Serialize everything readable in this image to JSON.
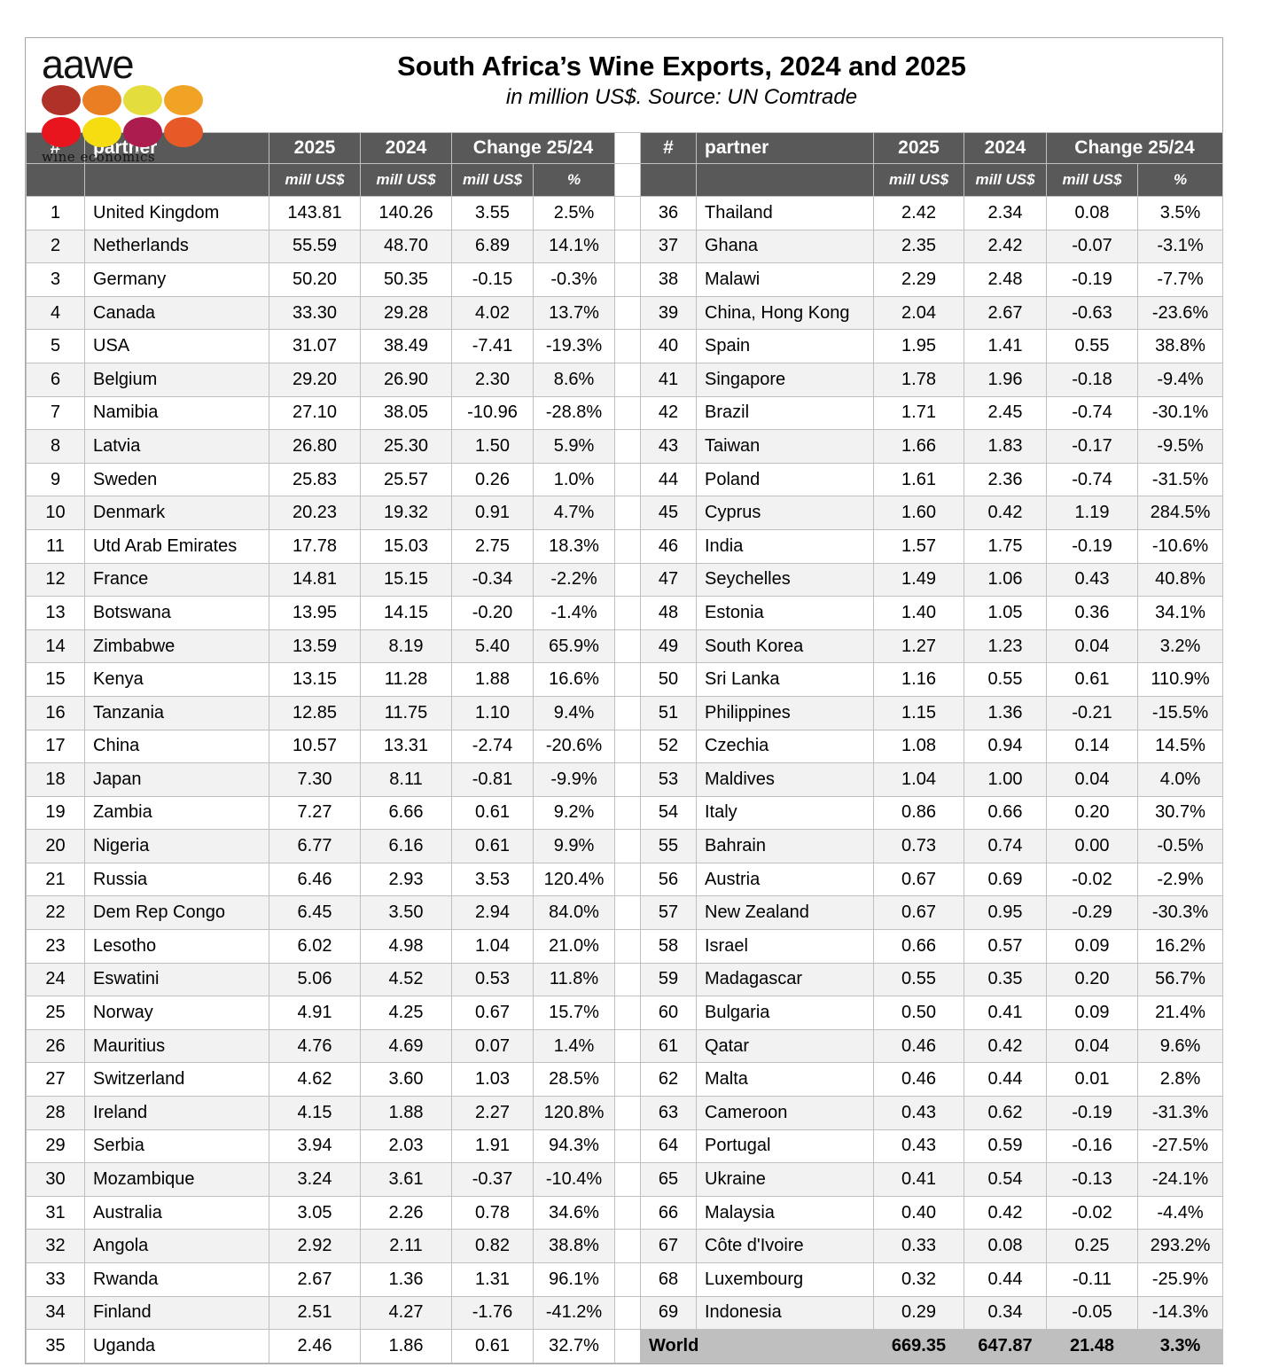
{
  "logo": {
    "brand": "aawe",
    "tagline": "wine economics",
    "dot_colors": [
      [
        "#af3128",
        "#e97e23",
        "#e3dd3e",
        "#f0a325"
      ],
      [
        "#e8141e",
        "#f6dd12",
        "#ac1c4e",
        "#e75a28"
      ]
    ]
  },
  "chart_data": {
    "type": "table",
    "title": "South Africa’s Wine Exports, 2024 and 2025",
    "subtitle": "in million US$. Source: UN Comtrade",
    "columns": {
      "rank": "#",
      "partner": "partner",
      "y2025": "2025",
      "y2024": "2024",
      "change": "Change 25/24",
      "unit": "mill US$",
      "pct": "%"
    },
    "left_rows": [
      [
        1,
        "United Kingdom",
        "143.81",
        "140.26",
        "3.55",
        "2.5%"
      ],
      [
        2,
        "Netherlands",
        "55.59",
        "48.70",
        "6.89",
        "14.1%"
      ],
      [
        3,
        "Germany",
        "50.20",
        "50.35",
        "-0.15",
        "-0.3%"
      ],
      [
        4,
        "Canada",
        "33.30",
        "29.28",
        "4.02",
        "13.7%"
      ],
      [
        5,
        "USA",
        "31.07",
        "38.49",
        "-7.41",
        "-19.3%"
      ],
      [
        6,
        "Belgium",
        "29.20",
        "26.90",
        "2.30",
        "8.6%"
      ],
      [
        7,
        "Namibia",
        "27.10",
        "38.05",
        "-10.96",
        "-28.8%"
      ],
      [
        8,
        "Latvia",
        "26.80",
        "25.30",
        "1.50",
        "5.9%"
      ],
      [
        9,
        "Sweden",
        "25.83",
        "25.57",
        "0.26",
        "1.0%"
      ],
      [
        10,
        "Denmark",
        "20.23",
        "19.32",
        "0.91",
        "4.7%"
      ],
      [
        11,
        "Utd Arab Emirates",
        "17.78",
        "15.03",
        "2.75",
        "18.3%"
      ],
      [
        12,
        "France",
        "14.81",
        "15.15",
        "-0.34",
        "-2.2%"
      ],
      [
        13,
        "Botswana",
        "13.95",
        "14.15",
        "-0.20",
        "-1.4%"
      ],
      [
        14,
        "Zimbabwe",
        "13.59",
        "8.19",
        "5.40",
        "65.9%"
      ],
      [
        15,
        "Kenya",
        "13.15",
        "11.28",
        "1.88",
        "16.6%"
      ],
      [
        16,
        "Tanzania",
        "12.85",
        "11.75",
        "1.10",
        "9.4%"
      ],
      [
        17,
        "China",
        "10.57",
        "13.31",
        "-2.74",
        "-20.6%"
      ],
      [
        18,
        "Japan",
        "7.30",
        "8.11",
        "-0.81",
        "-9.9%"
      ],
      [
        19,
        "Zambia",
        "7.27",
        "6.66",
        "0.61",
        "9.2%"
      ],
      [
        20,
        "Nigeria",
        "6.77",
        "6.16",
        "0.61",
        "9.9%"
      ],
      [
        21,
        "Russia",
        "6.46",
        "2.93",
        "3.53",
        "120.4%"
      ],
      [
        22,
        "Dem Rep Congo",
        "6.45",
        "3.50",
        "2.94",
        "84.0%"
      ],
      [
        23,
        "Lesotho",
        "6.02",
        "4.98",
        "1.04",
        "21.0%"
      ],
      [
        24,
        "Eswatini",
        "5.06",
        "4.52",
        "0.53",
        "11.8%"
      ],
      [
        25,
        "Norway",
        "4.91",
        "4.25",
        "0.67",
        "15.7%"
      ],
      [
        26,
        "Mauritius",
        "4.76",
        "4.69",
        "0.07",
        "1.4%"
      ],
      [
        27,
        "Switzerland",
        "4.62",
        "3.60",
        "1.03",
        "28.5%"
      ],
      [
        28,
        "Ireland",
        "4.15",
        "1.88",
        "2.27",
        "120.8%"
      ],
      [
        29,
        "Serbia",
        "3.94",
        "2.03",
        "1.91",
        "94.3%"
      ],
      [
        30,
        "Mozambique",
        "3.24",
        "3.61",
        "-0.37",
        "-10.4%"
      ],
      [
        31,
        "Australia",
        "3.05",
        "2.26",
        "0.78",
        "34.6%"
      ],
      [
        32,
        "Angola",
        "2.92",
        "2.11",
        "0.82",
        "38.8%"
      ],
      [
        33,
        "Rwanda",
        "2.67",
        "1.36",
        "1.31",
        "96.1%"
      ],
      [
        34,
        "Finland",
        "2.51",
        "4.27",
        "-1.76",
        "-41.2%"
      ],
      [
        35,
        "Uganda",
        "2.46",
        "1.86",
        "0.61",
        "32.7%"
      ]
    ],
    "right_rows": [
      [
        36,
        "Thailand",
        "2.42",
        "2.34",
        "0.08",
        "3.5%"
      ],
      [
        37,
        "Ghana",
        "2.35",
        "2.42",
        "-0.07",
        "-3.1%"
      ],
      [
        38,
        "Malawi",
        "2.29",
        "2.48",
        "-0.19",
        "-7.7%"
      ],
      [
        39,
        "China, Hong Kong",
        "2.04",
        "2.67",
        "-0.63",
        "-23.6%"
      ],
      [
        40,
        "Spain",
        "1.95",
        "1.41",
        "0.55",
        "38.8%"
      ],
      [
        41,
        "Singapore",
        "1.78",
        "1.96",
        "-0.18",
        "-9.4%"
      ],
      [
        42,
        "Brazil",
        "1.71",
        "2.45",
        "-0.74",
        "-30.1%"
      ],
      [
        43,
        "Taiwan",
        "1.66",
        "1.83",
        "-0.17",
        "-9.5%"
      ],
      [
        44,
        "Poland",
        "1.61",
        "2.36",
        "-0.74",
        "-31.5%"
      ],
      [
        45,
        "Cyprus",
        "1.60",
        "0.42",
        "1.19",
        "284.5%"
      ],
      [
        46,
        "India",
        "1.57",
        "1.75",
        "-0.19",
        "-10.6%"
      ],
      [
        47,
        "Seychelles",
        "1.49",
        "1.06",
        "0.43",
        "40.8%"
      ],
      [
        48,
        "Estonia",
        "1.40",
        "1.05",
        "0.36",
        "34.1%"
      ],
      [
        49,
        "South Korea",
        "1.27",
        "1.23",
        "0.04",
        "3.2%"
      ],
      [
        50,
        "Sri Lanka",
        "1.16",
        "0.55",
        "0.61",
        "110.9%"
      ],
      [
        51,
        "Philippines",
        "1.15",
        "1.36",
        "-0.21",
        "-15.5%"
      ],
      [
        52,
        "Czechia",
        "1.08",
        "0.94",
        "0.14",
        "14.5%"
      ],
      [
        53,
        "Maldives",
        "1.04",
        "1.00",
        "0.04",
        "4.0%"
      ],
      [
        54,
        "Italy",
        "0.86",
        "0.66",
        "0.20",
        "30.7%"
      ],
      [
        55,
        "Bahrain",
        "0.73",
        "0.74",
        "0.00",
        "-0.5%"
      ],
      [
        56,
        "Austria",
        "0.67",
        "0.69",
        "-0.02",
        "-2.9%"
      ],
      [
        57,
        "New Zealand",
        "0.67",
        "0.95",
        "-0.29",
        "-30.3%"
      ],
      [
        58,
        "Israel",
        "0.66",
        "0.57",
        "0.09",
        "16.2%"
      ],
      [
        59,
        "Madagascar",
        "0.55",
        "0.35",
        "0.20",
        "56.7%"
      ],
      [
        60,
        "Bulgaria",
        "0.50",
        "0.41",
        "0.09",
        "21.4%"
      ],
      [
        61,
        "Qatar",
        "0.46",
        "0.42",
        "0.04",
        "9.6%"
      ],
      [
        62,
        "Malta",
        "0.46",
        "0.44",
        "0.01",
        "2.8%"
      ],
      [
        63,
        "Cameroon",
        "0.43",
        "0.62",
        "-0.19",
        "-31.3%"
      ],
      [
        64,
        "Portugal",
        "0.43",
        "0.59",
        "-0.16",
        "-27.5%"
      ],
      [
        65,
        "Ukraine",
        "0.41",
        "0.54",
        "-0.13",
        "-24.1%"
      ],
      [
        66,
        "Malaysia",
        "0.40",
        "0.42",
        "-0.02",
        "-4.4%"
      ],
      [
        67,
        "Côte d'Ivoire",
        "0.33",
        "0.08",
        "0.25",
        "293.2%"
      ],
      [
        68,
        "Luxembourg",
        "0.32",
        "0.44",
        "-0.11",
        "-25.9%"
      ],
      [
        69,
        "Indonesia",
        "0.29",
        "0.34",
        "-0.05",
        "-14.3%"
      ]
    ],
    "world": [
      "World",
      "669.35",
      "647.87",
      "21.48",
      "3.3%"
    ]
  },
  "colors": {
    "header_bg": "#595959",
    "row_stripe": "#f2f2f2",
    "world_bg": "#bfbfbf",
    "grid": "#bfbfbf",
    "frame": "#a6a6a6"
  }
}
